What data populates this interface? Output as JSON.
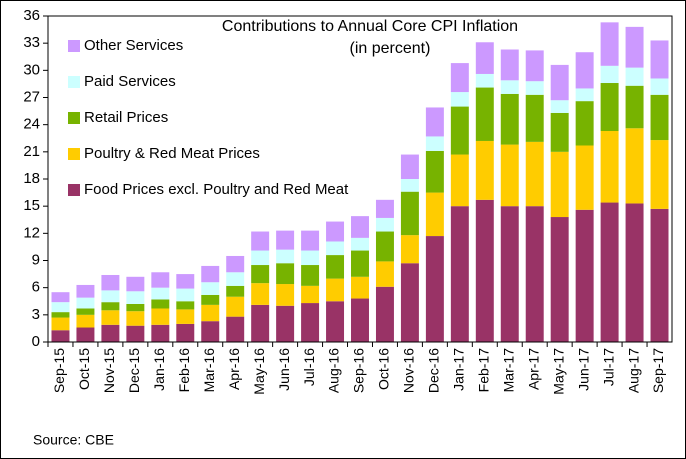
{
  "chart_data": {
    "type": "stacked_bar",
    "title": "Contributions to Annual Core CPI Inflation",
    "subtitle": "(in percent)",
    "source": "Source: CBE",
    "categories": [
      "Sep-15",
      "Oct-15",
      "Nov-15",
      "Dec-15",
      "Jan-16",
      "Feb-16",
      "Mar-16",
      "Apr-16",
      "May-16",
      "Jun-16",
      "Jul-16",
      "Aug-16",
      "Sep-16",
      "Oct-16",
      "Nov-16",
      "Dec-16",
      "Jan-17",
      "Feb-17",
      "Mar-17",
      "Apr-17",
      "May-17",
      "Jun-17",
      "Jul-17",
      "Aug-17",
      "Sep-17"
    ],
    "series": [
      {
        "name": "Food Prices excl. Poultry and Red Meat",
        "color": "#993366",
        "values": [
          1.3,
          1.6,
          1.9,
          1.8,
          1.9,
          2.0,
          2.3,
          2.8,
          4.1,
          4.0,
          4.3,
          4.5,
          4.8,
          6.1,
          8.7,
          11.7,
          15.0,
          15.7,
          15.0,
          15.0,
          13.8,
          14.6,
          15.4,
          15.3,
          14.7
        ]
      },
      {
        "name": "Poultry & Red Meat Prices",
        "color": "#ffcc00",
        "values": [
          1.4,
          1.4,
          1.6,
          1.6,
          1.8,
          1.6,
          1.8,
          2.2,
          2.4,
          2.4,
          1.9,
          2.5,
          2.4,
          2.8,
          3.1,
          4.8,
          5.7,
          6.5,
          6.8,
          7.1,
          7.2,
          7.1,
          7.9,
          8.3,
          7.6
        ]
      },
      {
        "name": "Retail Prices",
        "color": "#77b300",
        "values": [
          0.6,
          0.7,
          0.9,
          0.8,
          1.0,
          0.9,
          1.1,
          1.2,
          2.0,
          2.3,
          2.3,
          2.6,
          2.9,
          3.3,
          4.8,
          4.6,
          5.3,
          5.9,
          5.6,
          5.2,
          4.3,
          4.9,
          5.3,
          4.7,
          5.0
        ]
      },
      {
        "name": "Paid Services",
        "color": "#ccffff",
        "values": [
          1.1,
          1.2,
          1.3,
          1.4,
          1.3,
          1.4,
          1.4,
          1.5,
          1.6,
          1.5,
          1.6,
          1.5,
          1.4,
          1.5,
          1.4,
          1.6,
          1.6,
          1.5,
          1.5,
          1.5,
          1.4,
          1.4,
          1.9,
          2.0,
          1.8
        ]
      },
      {
        "name": "Other Services",
        "color": "#cc99ff",
        "values": [
          1.1,
          1.4,
          1.7,
          1.6,
          1.7,
          1.6,
          1.8,
          1.8,
          2.1,
          2.1,
          2.2,
          2.2,
          2.4,
          2.0,
          2.7,
          3.2,
          3.2,
          3.5,
          3.4,
          3.4,
          3.9,
          4.0,
          4.8,
          4.5,
          4.2
        ]
      }
    ],
    "ylim": [
      0,
      36
    ],
    "yticks": [
      0,
      3,
      6,
      9,
      12,
      15,
      18,
      21,
      24,
      27,
      30,
      33,
      36
    ],
    "grid": false
  }
}
